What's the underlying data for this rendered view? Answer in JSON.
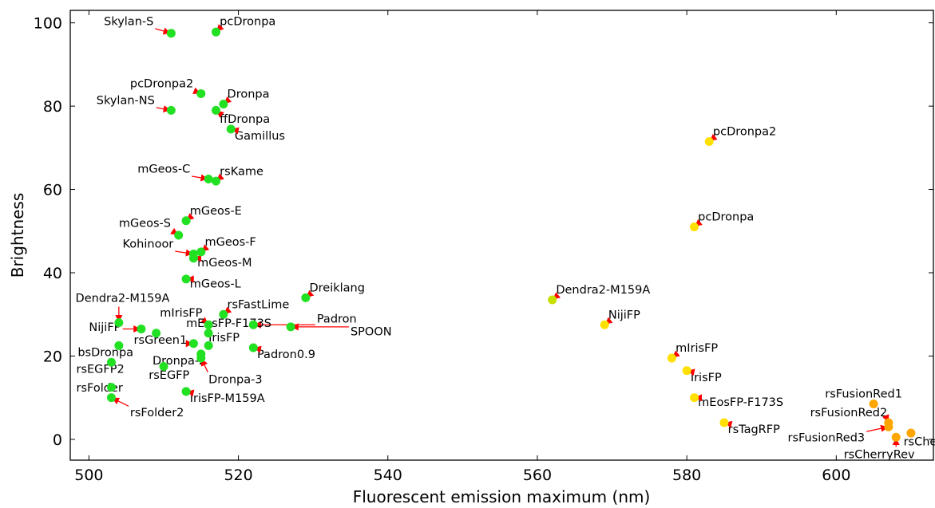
{
  "chart_data": {
    "type": "scatter",
    "title": "",
    "xlabel": "Fluorescent emission maximum (nm)",
    "ylabel": "Brightness",
    "xlim": [
      497.5,
      613
    ],
    "ylim": [
      -5,
      103
    ],
    "xticks": [
      500,
      520,
      540,
      560,
      580,
      600
    ],
    "yticks": [
      0,
      20,
      40,
      60,
      80,
      100
    ],
    "grid": false,
    "legend": "none",
    "colors": {
      "green": "#22e022",
      "yellowgreen": "#c8e000",
      "yellow": "#ffe000",
      "orange": "#ffa500",
      "arrow": "#ff0000"
    },
    "points": [
      {
        "x": 511,
        "y": 97.5,
        "color": "green",
        "label": "Skylan-S",
        "lx": 502,
        "ly": 99.5
      },
      {
        "x": 517,
        "y": 97.8,
        "color": "green",
        "label": "pcDronpa",
        "lx": 517.5,
        "ly": 99.5
      },
      {
        "x": 515,
        "y": 83,
        "color": "green",
        "label": "pcDronpa2",
        "lx": 505.5,
        "ly": 84.5
      },
      {
        "x": 518,
        "y": 80.5,
        "color": "green",
        "label": "Dronpa",
        "lx": 518.5,
        "ly": 82
      },
      {
        "x": 511,
        "y": 79,
        "color": "green",
        "label": "Skylan-NS",
        "lx": 501,
        "ly": 80.5
      },
      {
        "x": 517,
        "y": 79,
        "color": "green",
        "label": "ffDronpa",
        "lx": 517.5,
        "ly": 76
      },
      {
        "x": 519,
        "y": 74.5,
        "color": "green",
        "label": "Gamillus",
        "lx": 519.5,
        "ly": 72
      },
      {
        "x": 516,
        "y": 62.5,
        "color": "green",
        "label": "mGeos-C",
        "lx": 506.5,
        "ly": 64
      },
      {
        "x": 517,
        "y": 62,
        "color": "green",
        "label": "rsKame",
        "lx": 517.5,
        "ly": 63.5
      },
      {
        "x": 513,
        "y": 52.5,
        "color": "green",
        "label": "mGeos-E",
        "lx": 513.5,
        "ly": 54
      },
      {
        "x": 512,
        "y": 49,
        "color": "green",
        "label": "mGeos-S",
        "lx": 504,
        "ly": 51
      },
      {
        "x": 515,
        "y": 45,
        "color": "green",
        "label": "mGeos-F",
        "lx": 515.5,
        "ly": 46.5
      },
      {
        "x": 514,
        "y": 44.5,
        "color": "green",
        "label": "Kohinoor",
        "lx": 504.5,
        "ly": 46
      },
      {
        "x": 514,
        "y": 43.5,
        "color": "green",
        "label": "mGeos-M",
        "lx": 514.5,
        "ly": 41.5
      },
      {
        "x": 513,
        "y": 38.5,
        "color": "green",
        "label": "mGeos-L",
        "lx": 513.5,
        "ly": 36.5
      },
      {
        "x": 529,
        "y": 34,
        "color": "green",
        "label": "Dreiklang",
        "lx": 529.5,
        "ly": 35.5
      },
      {
        "x": 518,
        "y": 30,
        "color": "green",
        "label": "rsFastLime",
        "lx": 518.5,
        "ly": 31.5
      },
      {
        "x": 504,
        "y": 28,
        "color": "green",
        "label": "Dendra2-M159A",
        "lx": 498.2,
        "ly": 33
      },
      {
        "x": 522,
        "y": 27.5,
        "color": "green",
        "label": "Padron",
        "lx": 530.5,
        "ly": 28
      },
      {
        "x": 516,
        "y": 27.5,
        "color": "green",
        "label": "mIrisFP",
        "lx": 509.5,
        "ly": 29.5
      },
      {
        "x": 507,
        "y": 26.5,
        "color": "green",
        "label": "NijiFP",
        "lx": 500,
        "ly": 26
      },
      {
        "x": 509,
        "y": 25.5,
        "color": "green",
        "label": "",
        "lx": null,
        "ly": null
      },
      {
        "x": 527,
        "y": 27,
        "color": "green",
        "label": "SPOON",
        "lx": 535,
        "ly": 25
      },
      {
        "x": 516,
        "y": 25.5,
        "color": "green",
        "label": "mEosFP-F173S",
        "lx": 513,
        "ly": 27
      },
      {
        "x": 514,
        "y": 23,
        "color": "green",
        "label": "rsGreen1",
        "lx": 506,
        "ly": 23
      },
      {
        "x": 516,
        "y": 22.5,
        "color": "green",
        "label": "IrisFP",
        "lx": 516,
        "ly": 23.5
      },
      {
        "x": 504,
        "y": 22.5,
        "color": "green",
        "label": "bsDronpa",
        "lx": 498.5,
        "ly": 20
      },
      {
        "x": 522,
        "y": 22,
        "color": "green",
        "label": "Padron0.9",
        "lx": 522.5,
        "ly": 19.5
      },
      {
        "x": 515,
        "y": 20.5,
        "color": "green",
        "label": "Dronpa-2",
        "lx": 508.5,
        "ly": 18
      },
      {
        "x": 515,
        "y": 19.5,
        "color": "green",
        "label": "Dronpa-3",
        "lx": 516,
        "ly": 13.5
      },
      {
        "x": 503,
        "y": 18.5,
        "color": "green",
        "label": "rsEGFP2",
        "lx": 498.3,
        "ly": 16
      },
      {
        "x": 510,
        "y": 17.5,
        "color": "green",
        "label": "rsEGFP",
        "lx": 508,
        "ly": 14.5
      },
      {
        "x": 503,
        "y": 12.5,
        "color": "green",
        "label": "rsFolder",
        "lx": 498.3,
        "ly": 11.5
      },
      {
        "x": 513,
        "y": 11.5,
        "color": "green",
        "label": "IrisFP-M159A",
        "lx": 513.5,
        "ly": 9
      },
      {
        "x": 503,
        "y": 10,
        "color": "green",
        "label": "rsFolder2",
        "lx": 505.5,
        "ly": 5.5
      },
      {
        "x": 583,
        "y": 71.5,
        "color": "yellow",
        "label": "pcDronpa2",
        "lx": 583.5,
        "ly": 73
      },
      {
        "x": 581,
        "y": 51,
        "color": "yellow",
        "label": "pcDronpa",
        "lx": 581.5,
        "ly": 52.5
      },
      {
        "x": 562,
        "y": 33.5,
        "color": "yellowgreen",
        "label": "Dendra2-M159A",
        "lx": 562.5,
        "ly": 35
      },
      {
        "x": 569,
        "y": 27.5,
        "color": "yellow",
        "label": "NijiFP",
        "lx": 569.5,
        "ly": 29
      },
      {
        "x": 578,
        "y": 19.5,
        "color": "yellow",
        "label": "mIrisFP",
        "lx": 578.5,
        "ly": 21
      },
      {
        "x": 580,
        "y": 16.5,
        "color": "yellow",
        "label": "IrisFP",
        "lx": 580.5,
        "ly": 14
      },
      {
        "x": 581,
        "y": 10,
        "color": "yellow",
        "label": "mEosFP-F173S",
        "lx": 581.5,
        "ly": 8
      },
      {
        "x": 585,
        "y": 4,
        "color": "yellow",
        "label": "rsTagRFP",
        "lx": 585.5,
        "ly": 1.5
      },
      {
        "x": 605,
        "y": 8.5,
        "color": "orange",
        "label": "rsFusionRed1",
        "lx": 598.5,
        "ly": 10
      },
      {
        "x": 607,
        "y": 4,
        "color": "orange",
        "label": "rsFusionRed2",
        "lx": 596.5,
        "ly": 5.5
      },
      {
        "x": 607,
        "y": 3,
        "color": "orange",
        "label": "rsFusionRed3",
        "lx": 593.5,
        "ly": -0.5
      },
      {
        "x": 610,
        "y": 1.5,
        "color": "orange",
        "label": "rsCherry",
        "lx": 609,
        "ly": -1.5
      },
      {
        "x": 608,
        "y": 0.5,
        "color": "orange",
        "label": "rsCherryRev",
        "lx": 601,
        "ly": -4.5
      }
    ]
  }
}
